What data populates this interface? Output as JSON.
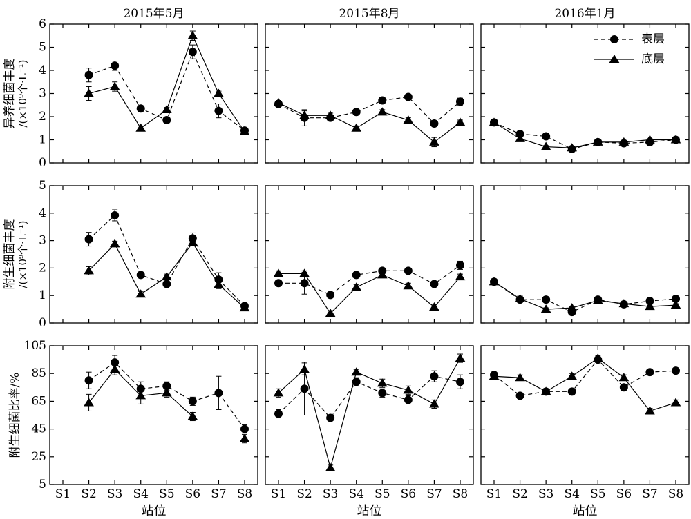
{
  "chart_data": {
    "type": "line",
    "panel_titles": [
      "2015年5月",
      "2015年8月",
      "2016年1月"
    ],
    "xlabel": "站位",
    "categories": [
      "S1",
      "S2",
      "S3",
      "S4",
      "S5",
      "S6",
      "S7",
      "S8"
    ],
    "legend": {
      "placement": "top-right",
      "entries": [
        "表层",
        "底层"
      ]
    },
    "rows": [
      {
        "ylabel_main": "异养细菌丰度",
        "ylabel_unit": "/(×10⁹个·L⁻¹)",
        "ylim": [
          0,
          6
        ],
        "yticks": [
          "0",
          "1",
          "2",
          "3",
          "4",
          "5",
          "6"
        ],
        "panels": [
          {
            "series": [
              {
                "name": "表层",
                "marker": "circle",
                "values": [
                  null,
                  3.8,
                  4.2,
                  2.35,
                  1.85,
                  4.8,
                  2.25,
                  1.4
                ],
                "errors": [
                  null,
                  0.3,
                  0.2,
                  0.1,
                  0.1,
                  0.3,
                  0.3,
                  0.1
                ]
              },
              {
                "name": "底层",
                "marker": "triangle",
                "values": [
                  null,
                  3.0,
                  3.3,
                  1.5,
                  2.3,
                  5.5,
                  3.0,
                  1.35
                ],
                "errors": [
                  null,
                  0.3,
                  0.2,
                  0.1,
                  0.1,
                  0.2,
                  0.1,
                  0.1
                ]
              }
            ]
          },
          {
            "series": [
              {
                "name": "表层",
                "marker": "circle",
                "values": [
                  2.55,
                  1.95,
                  1.95,
                  2.2,
                  2.7,
                  2.85,
                  1.7,
                  2.65
                ],
                "errors": [
                  0.1,
                  0.35,
                  0.1,
                  0.1,
                  0.1,
                  0.1,
                  0.1,
                  0.15
                ]
              },
              {
                "name": "底层",
                "marker": "triangle",
                "values": [
                  2.6,
                  2.05,
                  2.05,
                  1.5,
                  2.2,
                  1.85,
                  0.9,
                  1.75
                ],
                "errors": [
                  0.1,
                  0.2,
                  0.1,
                  0.1,
                  0.1,
                  0.1,
                  0.2,
                  0.1
                ]
              }
            ]
          },
          {
            "series": [
              {
                "name": "表层",
                "marker": "circle",
                "values": [
                  1.75,
                  1.25,
                  1.15,
                  0.6,
                  0.9,
                  0.85,
                  0.9,
                  1.0
                ],
                "errors": [
                  0.1,
                  0.1,
                  0.05,
                  0.05,
                  0.05,
                  0.05,
                  0.05,
                  0.05
                ]
              },
              {
                "name": "底层",
                "marker": "triangle",
                "values": [
                  1.75,
                  1.05,
                  0.7,
                  0.65,
                  0.9,
                  0.9,
                  1.0,
                  1.0
                ],
                "errors": [
                  0.1,
                  0.1,
                  0.05,
                  0.05,
                  0.05,
                  0.05,
                  0.05,
                  0.05
                ]
              }
            ]
          }
        ]
      },
      {
        "ylabel_main": "附生细菌丰度",
        "ylabel_unit": "/(×10⁹个·L⁻¹)",
        "ylim": [
          0,
          5
        ],
        "yticks": [
          "0",
          "1",
          "2",
          "3",
          "4",
          "5"
        ],
        "panels": [
          {
            "series": [
              {
                "name": "表层",
                "marker": "circle",
                "values": [
                  null,
                  3.05,
                  3.92,
                  1.75,
                  1.42,
                  3.08,
                  1.58,
                  0.62
                ],
                "errors": [
                  null,
                  0.25,
                  0.2,
                  0.1,
                  0.1,
                  0.2,
                  0.25,
                  0.1
                ]
              },
              {
                "name": "底层",
                "marker": "triangle",
                "values": [
                  null,
                  1.9,
                  2.88,
                  1.05,
                  1.68,
                  2.92,
                  1.4,
                  0.55
                ],
                "errors": [
                  null,
                  0.15,
                  0.1,
                  0.1,
                  0.1,
                  0.1,
                  0.15,
                  0.1
                ]
              }
            ]
          },
          {
            "series": [
              {
                "name": "表层",
                "marker": "circle",
                "values": [
                  1.45,
                  1.45,
                  1.02,
                  1.75,
                  1.9,
                  1.9,
                  1.42,
                  2.1
                ],
                "errors": [
                  0.1,
                  0.4,
                  0.1,
                  0.1,
                  0.1,
                  0.1,
                  0.1,
                  0.15
                ]
              },
              {
                "name": "底层",
                "marker": "triangle",
                "values": [
                  1.8,
                  1.8,
                  0.35,
                  1.3,
                  1.75,
                  1.35,
                  0.58,
                  1.68
                ],
                "errors": [
                  0.1,
                  0.1,
                  0.1,
                  0.1,
                  0.1,
                  0.1,
                  0.1,
                  0.1
                ]
              }
            ]
          },
          {
            "series": [
              {
                "name": "表层",
                "marker": "circle",
                "values": [
                  1.5,
                  0.85,
                  0.85,
                  0.4,
                  0.85,
                  0.68,
                  0.8,
                  0.88
                ],
                "errors": [
                  0.1,
                  0.1,
                  0.05,
                  0.05,
                  0.05,
                  0.05,
                  0.05,
                  0.05
                ]
              },
              {
                "name": "底层",
                "marker": "triangle",
                "values": [
                  1.5,
                  0.88,
                  0.5,
                  0.55,
                  0.82,
                  0.7,
                  0.6,
                  0.65
                ],
                "errors": [
                  0.1,
                  0.1,
                  0.05,
                  0.05,
                  0.05,
                  0.05,
                  0.05,
                  0.05
                ]
              }
            ]
          }
        ]
      },
      {
        "ylabel_main": "附生细菌比率/%",
        "ylabel_unit": "",
        "ylim": [
          5,
          105
        ],
        "yticks": [
          "5",
          "25",
          "45",
          "65",
          "85",
          "105"
        ],
        "panels": [
          {
            "series": [
              {
                "name": "表层",
                "marker": "circle",
                "values": [
                  null,
                  80,
                  93,
                  74,
                  76,
                  65,
                  71,
                  45
                ],
                "errors": [
                  null,
                  6,
                  5,
                  5,
                  3,
                  3,
                  12,
                  3
                ]
              },
              {
                "name": "底层",
                "marker": "triangle",
                "values": [
                  null,
                  64,
                  88,
                  69,
                  71,
                  54,
                  null,
                  38
                ],
                "errors": [
                  null,
                  6,
                  4,
                  6,
                  3,
                  3,
                  null,
                  3
                ]
              }
            ]
          },
          {
            "series": [
              {
                "name": "表层",
                "marker": "circle",
                "values": [
                  56,
                  74,
                  53,
                  79,
                  71,
                  66,
                  83,
                  79
                ],
                "errors": [
                  3,
                  19,
                  2,
                  3,
                  3,
                  3,
                  4,
                  5
                ]
              },
              {
                "name": "底层",
                "marker": "triangle",
                "values": [
                  71,
                  88,
                  17,
                  86,
                  78,
                  73,
                  63,
                  96
                ],
                "errors": [
                  3,
                  4,
                  2,
                  2,
                  3,
                  3,
                  3,
                  3
                ]
              }
            ]
          },
          {
            "series": [
              {
                "name": "表层",
                "marker": "circle",
                "values": [
                  84,
                  69,
                  72,
                  72,
                  95,
                  75,
                  86,
                  87
                ],
                "errors": [
                  2,
                  2,
                  2,
                  2,
                  2,
                  2,
                  2,
                  2
                ]
              },
              {
                "name": "底层",
                "marker": "triangle",
                "values": [
                  83,
                  82,
                  72,
                  83,
                  96,
                  82,
                  58,
                  64
                ],
                "errors": [
                  2,
                  2,
                  2,
                  2,
                  2,
                  2,
                  2,
                  2
                ]
              }
            ]
          }
        ]
      }
    ]
  }
}
